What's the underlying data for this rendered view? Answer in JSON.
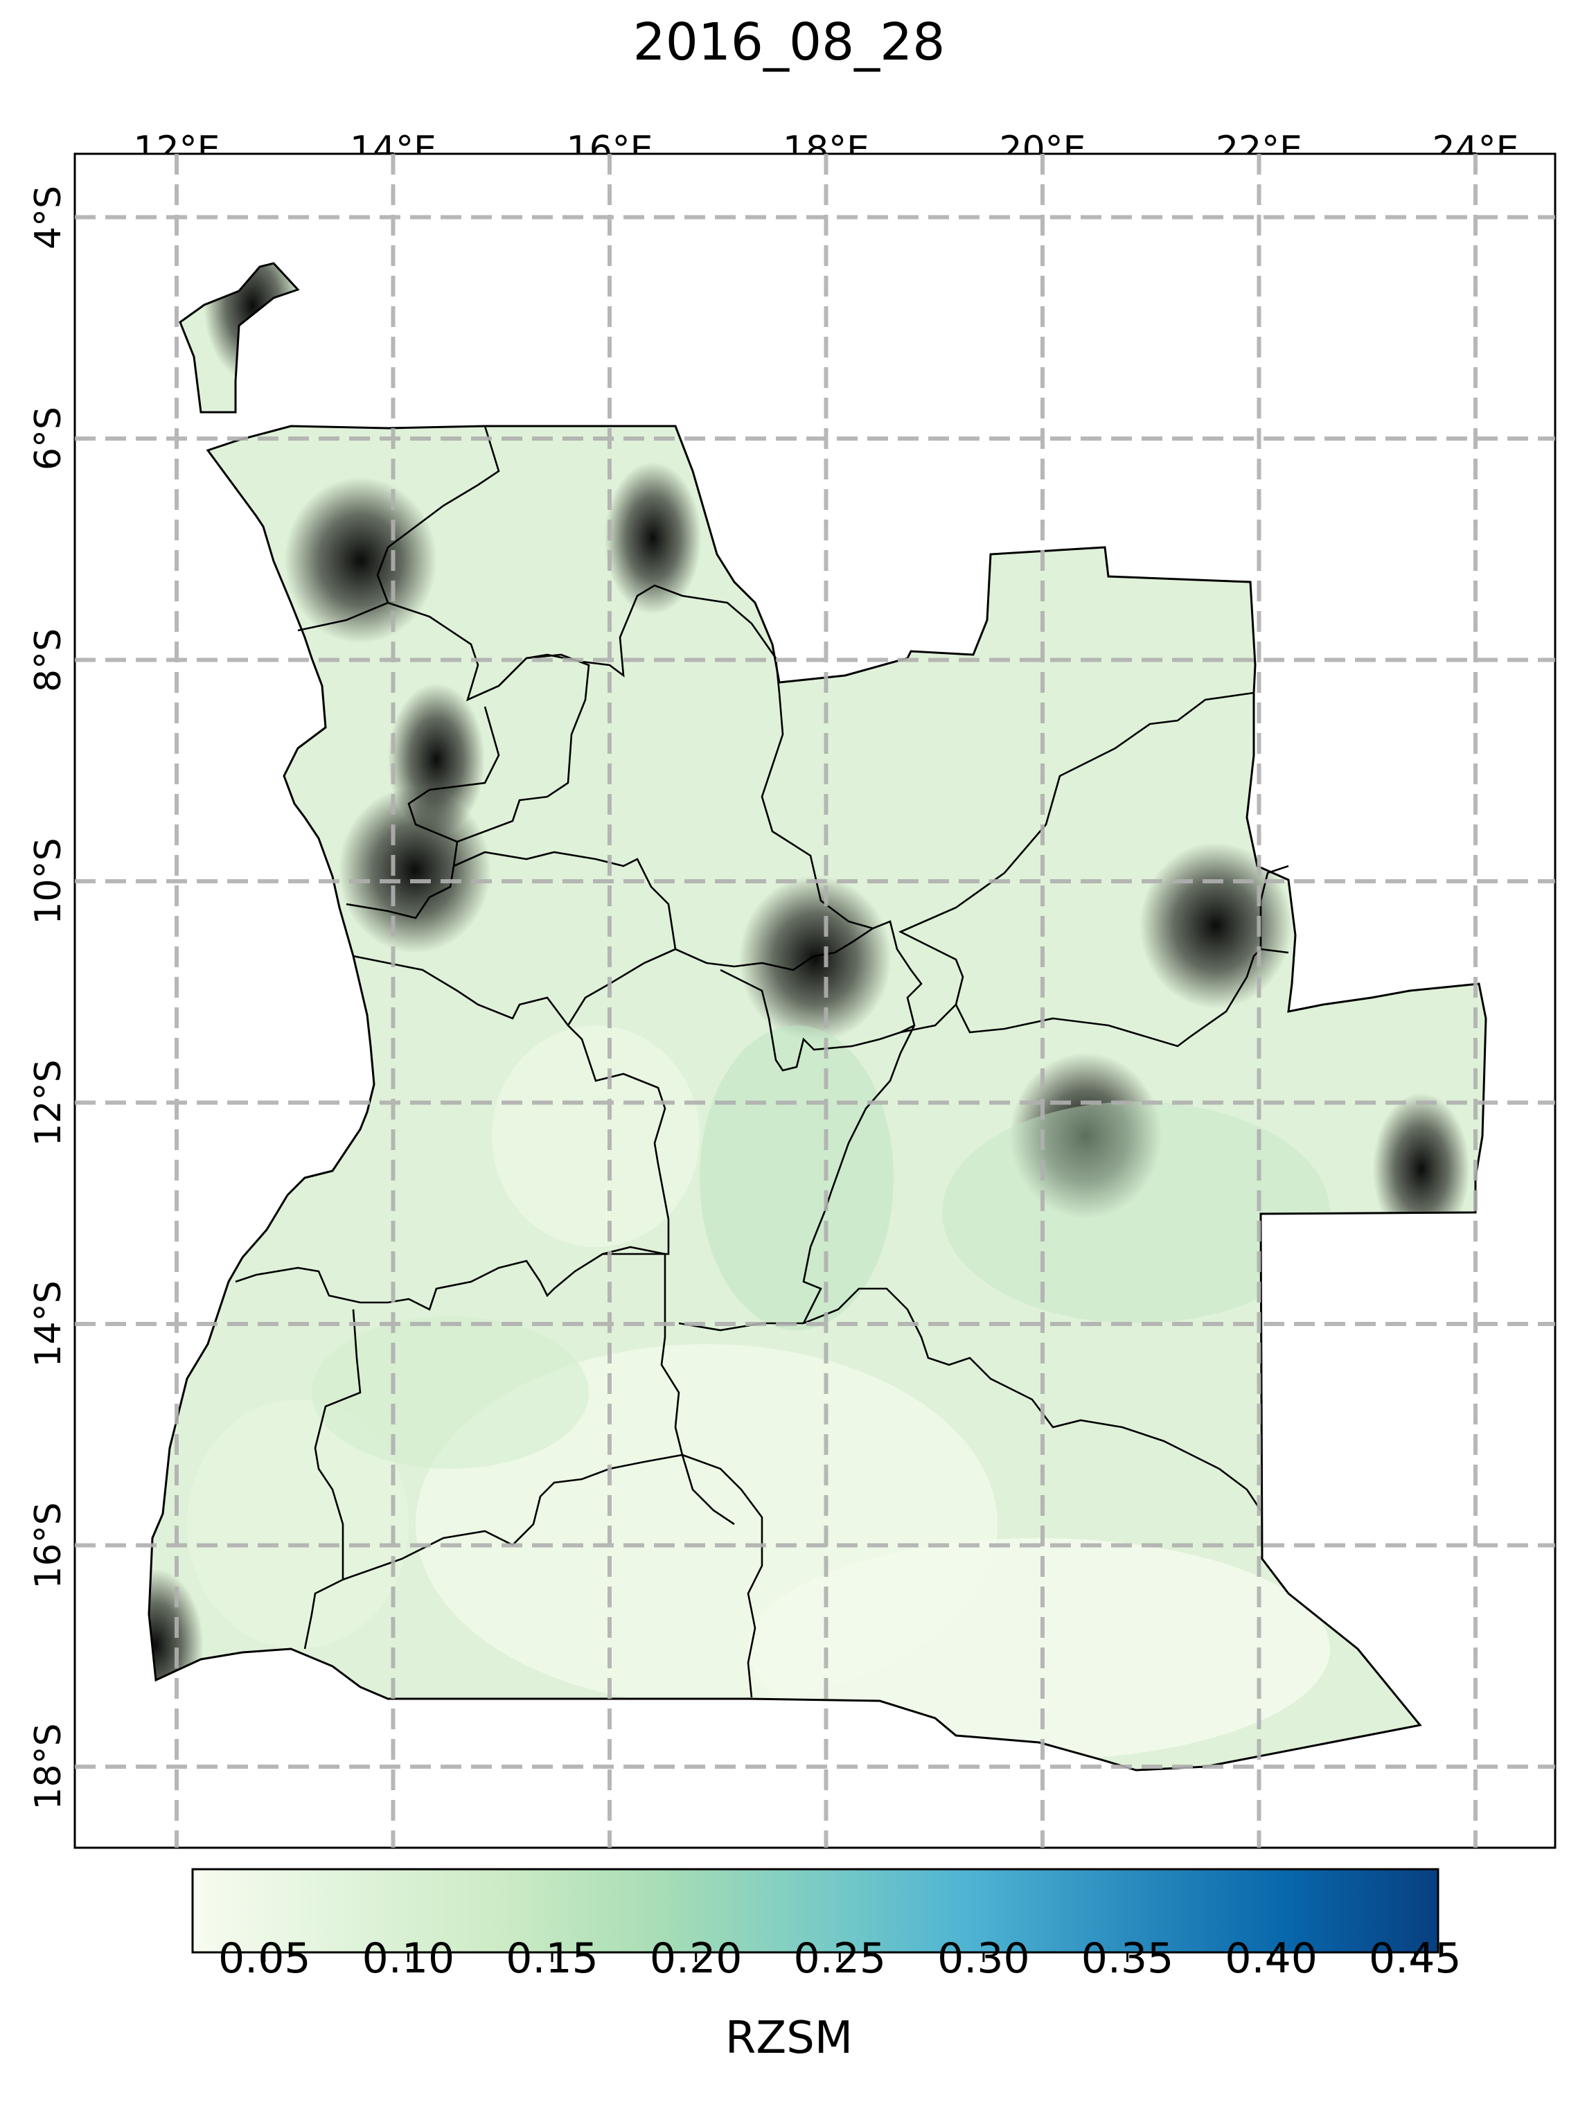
{
  "title": "2016_08_28",
  "lon_ticks": [
    {
      "label": "12°E",
      "value": 12
    },
    {
      "label": "14°E",
      "value": 14
    },
    {
      "label": "16°E",
      "value": 16
    },
    {
      "label": "18°E",
      "value": 18
    },
    {
      "label": "20°E",
      "value": 20
    },
    {
      "label": "22°E",
      "value": 22
    },
    {
      "label": "24°E",
      "value": 24
    }
  ],
  "lat_ticks": [
    {
      "label": "4°S",
      "value": -4
    },
    {
      "label": "6°S",
      "value": -6
    },
    {
      "label": "8°S",
      "value": -8
    },
    {
      "label": "10°S",
      "value": -10
    },
    {
      "label": "12°S",
      "value": -12
    },
    {
      "label": "14°S",
      "value": -14
    },
    {
      "label": "16°S",
      "value": -16
    },
    {
      "label": "18°S",
      "value": -18
    }
  ],
  "colorbar": {
    "label": "RZSM",
    "min": 0.025,
    "max": 0.458,
    "ticks": [
      "0.05",
      "0.10",
      "0.15",
      "0.20",
      "0.25",
      "0.30",
      "0.35",
      "0.40",
      "0.45"
    ],
    "colormap": "GnBu",
    "colors": [
      "#f7fcf0",
      "#e0f3db",
      "#ccebc5",
      "#a8ddb5",
      "#7bccc4",
      "#4eb3d3",
      "#2b8cbe",
      "#0868ac",
      "#084081"
    ]
  },
  "region": "Angola",
  "moisture_hotspots": [
    {
      "lon": 16.4,
      "lat": -6.9,
      "value": 0.36
    },
    {
      "lon": 14.4,
      "lat": -8.9,
      "value": 0.42
    },
    {
      "lon": 12.7,
      "lat": -4.8,
      "value": 0.33
    },
    {
      "lon": 23.5,
      "lat": -12.6,
      "value": 0.38
    },
    {
      "lon": 20.4,
      "lat": -12.3,
      "value": 0.26
    },
    {
      "lon": 11.8,
      "lat": -16.9,
      "value": 0.45
    },
    {
      "lon": 13.7,
      "lat": -7.1,
      "value": 0.24
    },
    {
      "lon": 14.2,
      "lat": -9.9,
      "value": 0.25
    },
    {
      "lon": 21.6,
      "lat": -10.4,
      "value": 0.22
    },
    {
      "lon": 17.9,
      "lat": -10.7,
      "value": 0.22
    }
  ]
}
